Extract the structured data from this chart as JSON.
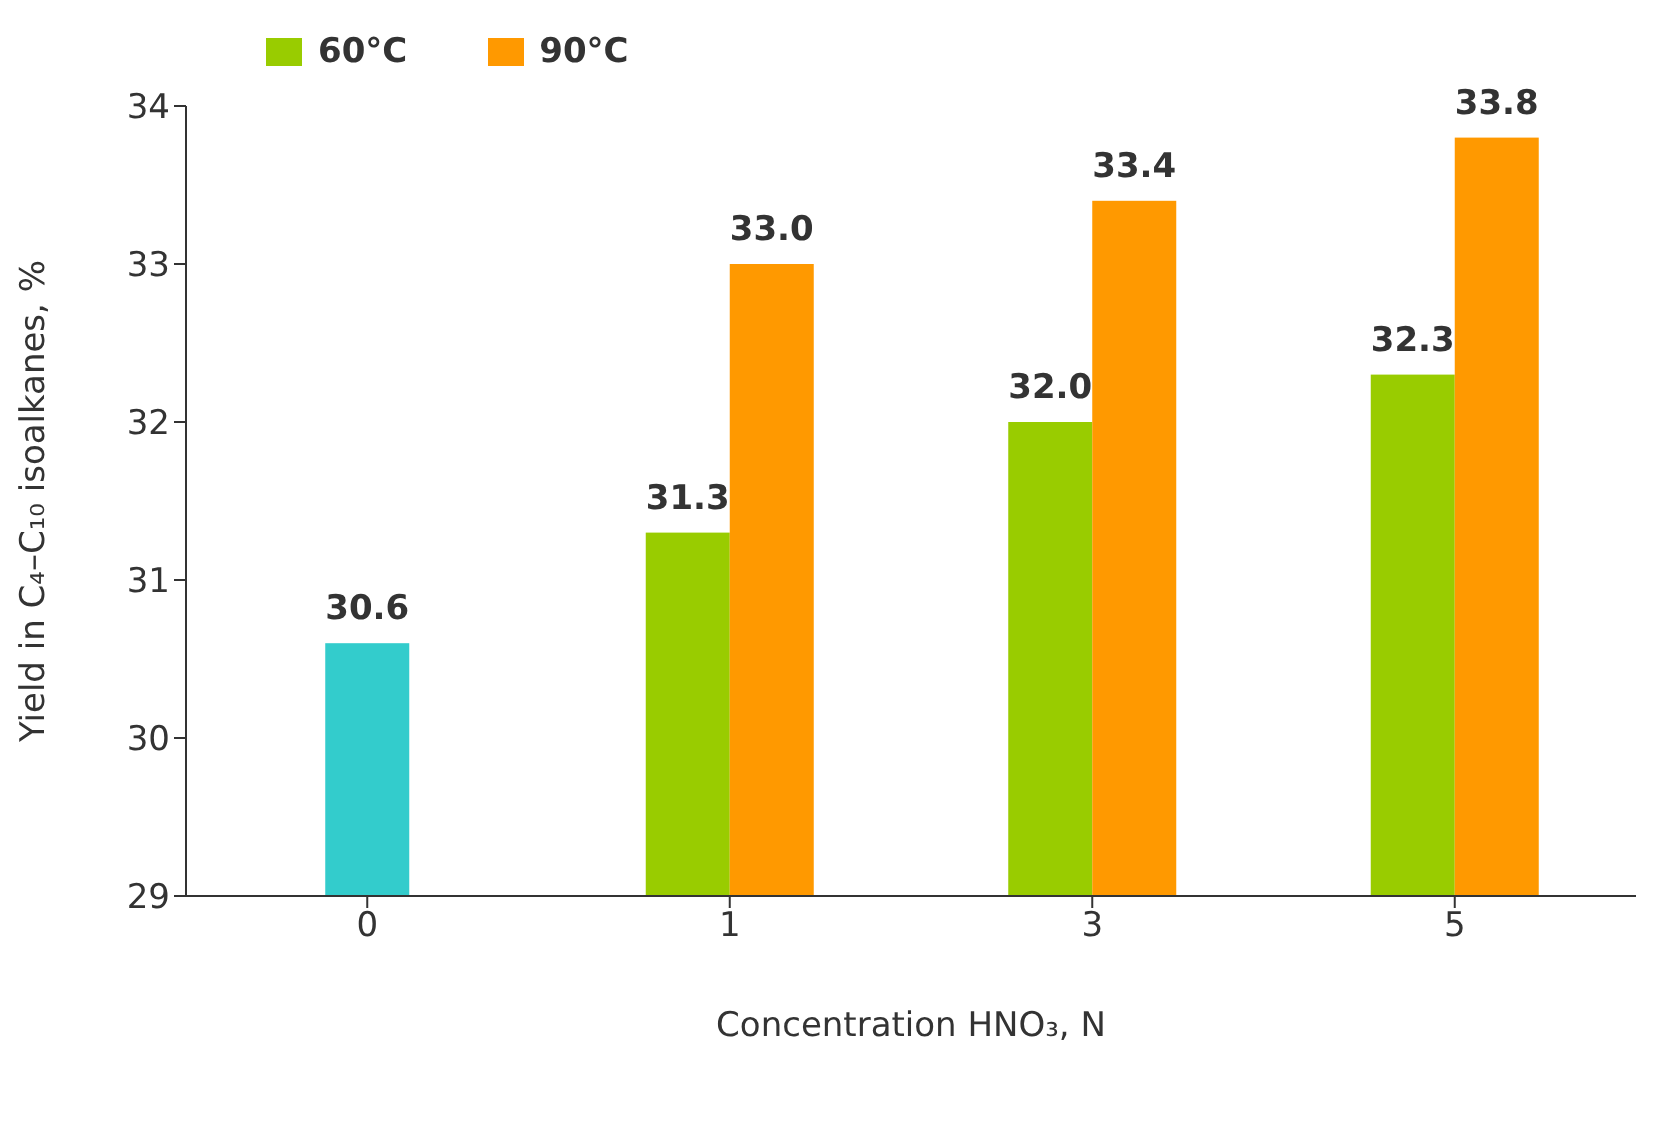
{
  "chart_data": {
    "type": "bar",
    "categories": [
      "0",
      "1",
      "3",
      "5"
    ],
    "series": [
      {
        "color": "#33cccc",
        "values": [
          30.6,
          null,
          null,
          null
        ],
        "value_labels": [
          "30.6",
          null,
          null,
          null
        ]
      },
      {
        "name": "60°C",
        "color": "#99cc00",
        "values": [
          null,
          31.3,
          32.0,
          32.3
        ],
        "value_labels": [
          null,
          "31.3",
          "32.0",
          "32.3"
        ]
      },
      {
        "name": "90°C",
        "color": "#ff9900",
        "values": [
          null,
          33.0,
          33.4,
          33.8
        ],
        "value_labels": [
          null,
          "33.0",
          "33.4",
          "33.8"
        ]
      }
    ],
    "ylim": [
      29,
      34
    ],
    "yticks": [
      29,
      30,
      31,
      32,
      33,
      34
    ],
    "xlabel": "Concentration HNO₃, N",
    "ylabel": "Yield in C₄–C₁₀ isoalkanes, %",
    "legend": "top left",
    "grid": false
  }
}
